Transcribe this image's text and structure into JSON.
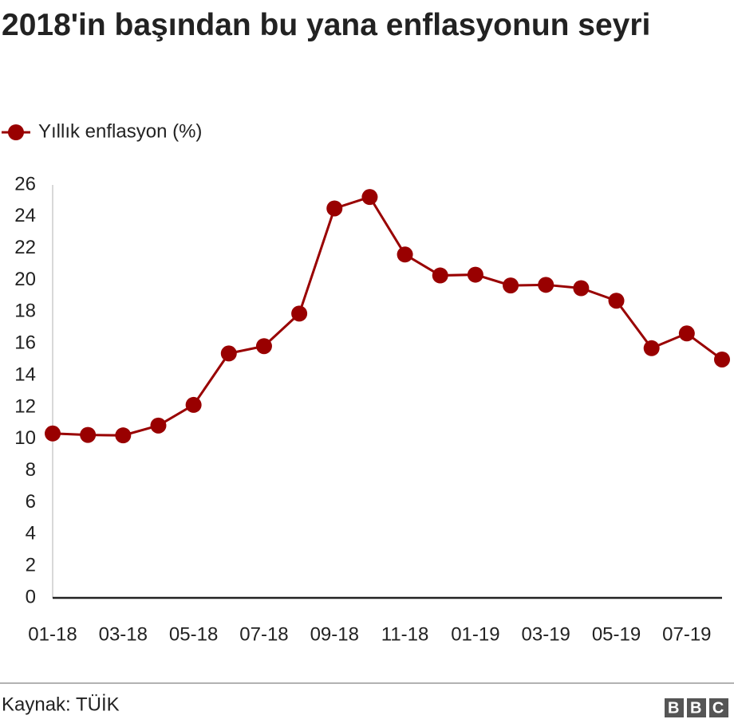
{
  "chart_data": {
    "type": "line",
    "title": "2018'in başından bu yana enflasyonun seyri",
    "categories": [
      "01-18",
      null,
      "03-18",
      null,
      "05-18",
      null,
      "07-18",
      null,
      "09-18",
      null,
      "11-18",
      null,
      "01-19",
      null,
      "03-19",
      null,
      "05-19",
      null,
      "07-19",
      null
    ],
    "series": [
      {
        "name": "Yıllık enflasyon (%)",
        "color": "#990000",
        "values": [
          10.35,
          10.26,
          10.23,
          10.85,
          12.15,
          15.39,
          15.85,
          17.9,
          24.52,
          25.24,
          21.62,
          20.3,
          20.35,
          19.67,
          19.71,
          19.5,
          18.71,
          15.72,
          16.65,
          15.01
        ]
      }
    ],
    "ylim": [
      0,
      26
    ],
    "yticks": [
      0,
      2,
      4,
      6,
      8,
      10,
      12,
      14,
      16,
      18,
      20,
      22,
      24,
      26
    ],
    "grid": false,
    "legend": "top-left",
    "source": "Kaynak: TÜİK",
    "logo": "BBC"
  }
}
